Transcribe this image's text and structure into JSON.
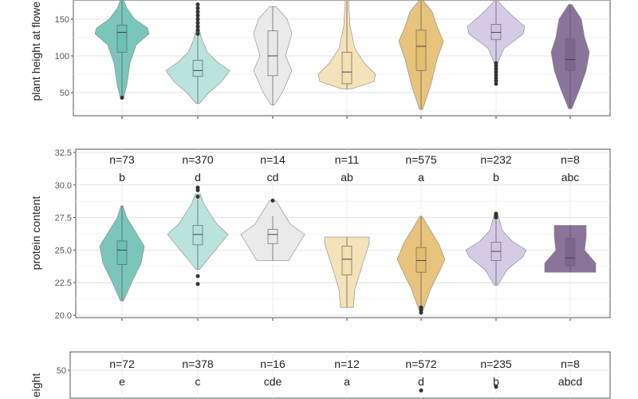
{
  "colors": [
    "#6cc0b4",
    "#b2e0da",
    "#e8e8e8",
    "#f3dfb0",
    "#e5bd6e",
    "#d3c4e3",
    "#7e6590"
  ],
  "chart_data": [
    {
      "type": "violin",
      "ylabel": "plant height at flowe",
      "y_ticks": [
        "50",
        "100",
        "150"
      ],
      "y_tick_values": [
        50,
        100,
        150
      ],
      "ylim": [
        18,
        178
      ],
      "grid": true,
      "n_labels": [],
      "letters": [],
      "groups": [
        {
          "profile": [
            [
              43,
              0.05
            ],
            [
              60,
              0.15
            ],
            [
              90,
              0.25
            ],
            [
              115,
              0.45
            ],
            [
              130,
              0.85
            ],
            [
              138,
              0.8
            ],
            [
              150,
              0.4
            ],
            [
              165,
              0.15
            ],
            [
              182,
              0.05
            ]
          ],
          "q1": 105,
          "median": 132,
          "q3": 142,
          "min": 43,
          "max": 182,
          "outliers": [
            43
          ]
        },
        {
          "profile": [
            [
              35,
              0.05
            ],
            [
              50,
              0.35
            ],
            [
              65,
              0.75
            ],
            [
              80,
              1.0
            ],
            [
              92,
              0.6
            ],
            [
              105,
              0.3
            ],
            [
              120,
              0.15
            ],
            [
              135,
              0.05
            ],
            [
              170,
              0.03
            ]
          ],
          "q1": 72,
          "median": 80,
          "q3": 94,
          "min": 35,
          "max": 130,
          "outliers": [
            130,
            135,
            140,
            145,
            150,
            155,
            160,
            165,
            170
          ]
        },
        {
          "profile": [
            [
              33,
              0.05
            ],
            [
              50,
              0.3
            ],
            [
              80,
              0.6
            ],
            [
              100,
              0.4
            ],
            [
              130,
              0.6
            ],
            [
              150,
              0.45
            ],
            [
              167,
              0.1
            ]
          ],
          "q1": 73,
          "median": 100,
          "q3": 134,
          "min": 33,
          "max": 167,
          "outliers": []
        },
        {
          "profile": [
            [
              55,
              0.15
            ],
            [
              65,
              0.85
            ],
            [
              75,
              0.9
            ],
            [
              90,
              0.55
            ],
            [
              110,
              0.25
            ],
            [
              140,
              0.1
            ],
            [
              180,
              0.05
            ]
          ],
          "q1": 62,
          "median": 78,
          "q3": 105,
          "min": 55,
          "max": 180,
          "outliers": []
        },
        {
          "profile": [
            [
              27,
              0.05
            ],
            [
              60,
              0.3
            ],
            [
              95,
              0.5
            ],
            [
              120,
              0.7
            ],
            [
              140,
              0.5
            ],
            [
              160,
              0.35
            ],
            [
              180,
              0.05
            ]
          ],
          "q1": 80,
          "median": 113,
          "q3": 135,
          "min": 27,
          "max": 180,
          "outliers": []
        },
        {
          "profile": [
            [
              60,
              0.02
            ],
            [
              90,
              0.05
            ],
            [
              110,
              0.25
            ],
            [
              130,
              0.85
            ],
            [
              140,
              0.9
            ],
            [
              155,
              0.5
            ],
            [
              170,
              0.15
            ],
            [
              180,
              0.05
            ]
          ],
          "q1": 122,
          "median": 132,
          "q3": 143,
          "min": 92,
          "max": 180,
          "outliers": [
            62,
            66,
            70,
            74,
            78,
            82,
            86,
            90
          ]
        },
        {
          "profile": [
            [
              28,
              0.05
            ],
            [
              55,
              0.3
            ],
            [
              80,
              0.5
            ],
            [
              105,
              0.6
            ],
            [
              125,
              0.45
            ],
            [
              150,
              0.35
            ],
            [
              170,
              0.05
            ]
          ],
          "q1": 80,
          "median": 95,
          "q3": 123,
          "min": 28,
          "max": 170,
          "outliers": []
        }
      ]
    },
    {
      "type": "violin",
      "ylabel": "protein content",
      "y_ticks": [
        "20.0",
        "22.5",
        "25.0",
        "27.5",
        "30.0",
        "32.5"
      ],
      "y_tick_values": [
        20,
        22.5,
        25,
        27.5,
        30,
        32.5
      ],
      "ylim": [
        19.8,
        32.7
      ],
      "grid": true,
      "n_labels": [
        "n=73",
        "n=370",
        "n=14",
        "n=11",
        "n=575",
        "n=232",
        "n=8"
      ],
      "letters": [
        "b",
        "d",
        "cd",
        "ab",
        "a",
        "b",
        "abc"
      ],
      "groups": [
        {
          "profile": [
            [
              21.1,
              0.05
            ],
            [
              22.5,
              0.3
            ],
            [
              24,
              0.6
            ],
            [
              25.3,
              0.7
            ],
            [
              26.5,
              0.4
            ],
            [
              27.5,
              0.15
            ],
            [
              28.4,
              0.03
            ]
          ],
          "q1": 23.9,
          "median": 25.0,
          "q3": 25.7,
          "min": 21.1,
          "max": 28.4,
          "outliers": []
        },
        {
          "profile": [
            [
              23.5,
              0.05
            ],
            [
              25,
              0.55
            ],
            [
              26.2,
              0.95
            ],
            [
              27,
              0.6
            ],
            [
              28.5,
              0.2
            ],
            [
              29.3,
              0.08
            ]
          ],
          "q1": 25.4,
          "median": 26.2,
          "q3": 26.9,
          "min": 23.5,
          "max": 28.9,
          "outliers": [
            22.4,
            23.0,
            29.1,
            29.6,
            29.8
          ]
        },
        {
          "profile": [
            [
              24.2,
              0.5
            ],
            [
              25,
              0.7
            ],
            [
              26.2,
              1.0
            ],
            [
              27,
              0.55
            ],
            [
              28,
              0.3
            ],
            [
              28.8,
              0.1
            ]
          ],
          "q1": 25.5,
          "median": 26.2,
          "q3": 26.6,
          "min": 24.2,
          "max": 27.6,
          "outliers": [
            28.8
          ]
        },
        {
          "profile": [
            [
              20.6,
              0.2
            ],
            [
              22,
              0.25
            ],
            [
              24,
              0.5
            ],
            [
              25.5,
              0.7
            ],
            [
              26,
              0.7
            ]
          ],
          "q1": 23.1,
          "median": 24.3,
          "q3": 25.3,
          "min": 20.6,
          "max": 26.0,
          "outliers": []
        },
        {
          "profile": [
            [
              20.3,
              0.05
            ],
            [
              22,
              0.3
            ],
            [
              23.5,
              0.6
            ],
            [
              24.3,
              0.75
            ],
            [
              25.5,
              0.55
            ],
            [
              26.5,
              0.3
            ],
            [
              27.6,
              0.03
            ]
          ],
          "q1": 23.3,
          "median": 24.2,
          "q3": 25.2,
          "min": 20.8,
          "max": 27.6,
          "outliers": [
            20.2,
            20.4,
            20.6
          ]
        },
        {
          "profile": [
            [
              22.3,
              0.05
            ],
            [
              23.5,
              0.35
            ],
            [
              24.5,
              0.85
            ],
            [
              25,
              0.95
            ],
            [
              25.7,
              0.5
            ],
            [
              26.5,
              0.2
            ],
            [
              27.8,
              0.05
            ]
          ],
          "q1": 24.2,
          "median": 24.9,
          "q3": 25.6,
          "min": 22.3,
          "max": 27.3,
          "outliers": [
            27.5,
            27.6,
            27.8
          ]
        },
        {
          "profile": [
            [
              23.3,
              0.8
            ],
            [
              24,
              0.8
            ],
            [
              25,
              0.45
            ],
            [
              26,
              0.5
            ],
            [
              26.9,
              0.5
            ]
          ],
          "q1": 23.8,
          "median": 24.4,
          "q3": 25.9,
          "min": 23.3,
          "max": 26.9,
          "outliers": []
        }
      ]
    },
    {
      "type": "violin",
      "ylabel": "eight",
      "y_ticks": [
        "50"
      ],
      "y_tick_values": [
        50
      ],
      "grid": true,
      "n_labels": [
        "n=72",
        "n=378",
        "n=16",
        "n=12",
        "n=572",
        "n=235",
        "n=8"
      ],
      "letters": [
        "e",
        "c",
        "cde",
        "a",
        "d",
        "b",
        "abcd"
      ],
      "groups": [
        {
          "outliers": []
        },
        {
          "outliers": []
        },
        {
          "outliers": []
        },
        {
          "outliers": []
        },
        {
          "outliers": [
            39
          ]
        },
        {
          "outliers": [
            41
          ]
        },
        {
          "outliers": []
        }
      ]
    }
  ]
}
